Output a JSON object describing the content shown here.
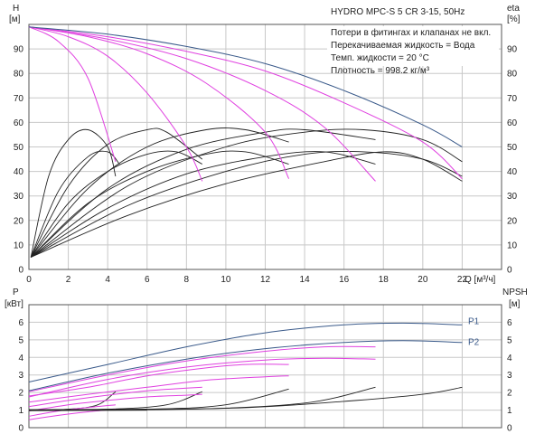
{
  "title": "HYDRO MPC-S 5 CR 3-15, 50Hz",
  "info_lines": [
    "Потери в фитингах и клапанах не вкл.",
    "Перекачиваемая жидкость = Вода",
    "Темп. жидкости = 20 °C",
    "Плотность = 998.2 кг/м³"
  ],
  "colors": {
    "head": "#e040e0",
    "pump_dark": "#3a5a8a",
    "eta": "#222222",
    "power": "#e040e0",
    "npsh": "#222222"
  },
  "chart_data": [
    {
      "type": "line",
      "name": "head-efficiency",
      "xlabel": "Q [м³/ч]",
      "xlim": [
        0,
        24
      ],
      "x_ticks": [
        0,
        2,
        4,
        6,
        8,
        10,
        12,
        14,
        16,
        18,
        20,
        22
      ],
      "left_axis": {
        "label_top": "H",
        "label_unit": "[м]",
        "ylim": [
          0,
          100
        ],
        "ticks": [
          0,
          10,
          20,
          30,
          40,
          50,
          60,
          70,
          80,
          90
        ]
      },
      "right_axis": {
        "label_top": "eta",
        "label_unit": "[%]",
        "ylim": [
          0,
          100
        ],
        "ticks": [
          0,
          10,
          20,
          30,
          40,
          50,
          60,
          70,
          80,
          90
        ]
      },
      "grid": true,
      "head_curves": [
        {
          "points": [
            [
              0,
              99
            ],
            [
              1.5,
              93
            ],
            [
              3,
              78
            ],
            [
              4.4,
              44
            ]
          ]
        },
        {
          "points": [
            [
              0,
              99
            ],
            [
              2,
              95
            ],
            [
              4,
              87
            ],
            [
              6,
              72
            ],
            [
              8,
              50
            ],
            [
              8.8,
              36
            ]
          ]
        },
        {
          "points": [
            [
              0,
              99
            ],
            [
              3,
              95
            ],
            [
              6,
              88
            ],
            [
              9,
              76
            ],
            [
              12,
              56
            ],
            [
              13.2,
              37
            ]
          ]
        },
        {
          "points": [
            [
              0,
              99
            ],
            [
              4,
              94
            ],
            [
              8,
              86
            ],
            [
              12,
              73
            ],
            [
              15,
              58
            ],
            [
              17.6,
              36
            ]
          ]
        },
        {
          "points": [
            [
              0,
              99
            ],
            [
              4,
              95
            ],
            [
              8,
              89
            ],
            [
              12,
              81
            ],
            [
              16,
              68
            ],
            [
              20,
              52
            ],
            [
              22,
              37
            ]
          ]
        },
        {
          "points": [
            [
              0,
              99
            ],
            [
              4,
              96
            ],
            [
              8,
              91
            ],
            [
              12,
              84
            ],
            [
              16,
              73
            ],
            [
              20,
              59
            ],
            [
              22,
              50
            ]
          ]
        }
      ],
      "eta_curves": [
        {
          "points": [
            [
              0.1,
              5
            ],
            [
              1,
              38
            ],
            [
              2,
              53
            ],
            [
              3,
              57
            ],
            [
              4,
              50
            ],
            [
              4.4,
              38
            ]
          ]
        },
        {
          "points": [
            [
              0.1,
              5
            ],
            [
              1.5,
              32
            ],
            [
              3,
              46
            ],
            [
              4,
              48
            ],
            [
              4.6,
              43
            ]
          ]
        },
        {
          "points": [
            [
              0.1,
              5
            ],
            [
              2,
              34
            ],
            [
              4,
              51
            ],
            [
              6,
              57
            ],
            [
              7,
              56
            ],
            [
              8.8,
              45
            ]
          ]
        },
        {
          "points": [
            [
              0.1,
              5
            ],
            [
              2,
              27
            ],
            [
              4,
              40
            ],
            [
              6,
              47
            ],
            [
              7.5,
              48
            ],
            [
              8.8,
              43
            ]
          ]
        },
        {
          "points": [
            [
              0.1,
              5
            ],
            [
              3,
              33
            ],
            [
              6,
              50
            ],
            [
              9,
              57
            ],
            [
              11,
              57
            ],
            [
              13.2,
              52
            ]
          ]
        },
        {
          "points": [
            [
              0.1,
              5
            ],
            [
              3,
              27
            ],
            [
              6,
              40
            ],
            [
              9,
              47
            ],
            [
              11,
              48
            ],
            [
              13.2,
              43
            ]
          ]
        },
        {
          "points": [
            [
              0.1,
              5
            ],
            [
              4,
              33
            ],
            [
              8,
              49
            ],
            [
              12,
              56
            ],
            [
              14,
              57
            ],
            [
              17.6,
              53
            ]
          ]
        },
        {
          "points": [
            [
              0.1,
              5
            ],
            [
              4,
              25
            ],
            [
              8,
              39
            ],
            [
              12,
              46
            ],
            [
              15,
              48
            ],
            [
              17.6,
              43
            ]
          ]
        },
        {
          "points": [
            [
              0.1,
              5
            ],
            [
              5,
              34
            ],
            [
              10,
              50
            ],
            [
              14,
              56
            ],
            [
              17,
              57
            ],
            [
              20,
              53
            ],
            [
              22,
              44
            ]
          ]
        },
        {
          "points": [
            [
              0.1,
              5
            ],
            [
              5,
              26
            ],
            [
              10,
              40
            ],
            [
              14,
              47
            ],
            [
              17,
              48
            ],
            [
              20,
              45
            ],
            [
              22,
              38
            ]
          ]
        },
        {
          "points": [
            [
              0.1,
              5
            ],
            [
              5,
              22
            ],
            [
              10,
              35
            ],
            [
              15,
              44
            ],
            [
              18,
              48
            ],
            [
              20,
              45
            ],
            [
              22,
              36
            ]
          ]
        }
      ]
    },
    {
      "type": "line",
      "name": "power-npsh",
      "xlim": [
        0,
        24
      ],
      "left_axis": {
        "label_top": "P",
        "label_unit": "[кВт]",
        "ylim": [
          0,
          7
        ],
        "ticks": [
          0,
          1,
          2,
          3,
          4,
          5,
          6
        ]
      },
      "right_axis": {
        "label_top": "NPSH",
        "label_unit": "[м]",
        "ylim": [
          0,
          7
        ],
        "ticks": [
          0,
          1,
          2,
          3,
          4,
          5,
          6
        ]
      },
      "grid": true,
      "series_labels": [
        {
          "text": "P1",
          "x": 22.3,
          "y": 5.9
        },
        {
          "text": "P2",
          "x": 22.3,
          "y": 4.7
        }
      ],
      "p1_curve": {
        "points": [
          [
            0,
            2.6
          ],
          [
            4,
            3.6
          ],
          [
            8,
            4.6
          ],
          [
            12,
            5.4
          ],
          [
            16,
            5.85
          ],
          [
            19,
            5.95
          ],
          [
            22,
            5.85
          ]
        ]
      },
      "p2_curve": {
        "points": [
          [
            0,
            2.1
          ],
          [
            4,
            3.1
          ],
          [
            8,
            3.9
          ],
          [
            12,
            4.5
          ],
          [
            16,
            4.85
          ],
          [
            19,
            4.95
          ],
          [
            22,
            4.85
          ]
        ]
      },
      "power_curves": [
        {
          "points": [
            [
              0,
              2.05
            ],
            [
              4,
              3.0
            ],
            [
              8,
              3.8
            ],
            [
              12,
              4.35
            ],
            [
              15,
              4.6
            ],
            [
              17.6,
              4.6
            ]
          ]
        },
        {
          "points": [
            [
              0,
              1.8
            ],
            [
              3,
              2.3
            ],
            [
              6,
              2.95
            ],
            [
              9,
              3.4
            ],
            [
              11,
              3.6
            ],
            [
              13.2,
              3.6
            ]
          ]
        },
        {
          "points": [
            [
              0,
              1.45
            ],
            [
              3,
              1.9
            ],
            [
              6,
              2.3
            ],
            [
              9,
              2.7
            ],
            [
              12,
              2.9
            ],
            [
              13.2,
              2.95
            ]
          ]
        },
        {
          "points": [
            [
              0,
              1.2
            ],
            [
              2,
              1.55
            ],
            [
              4,
              1.85
            ],
            [
              6,
              2.1
            ],
            [
              8,
              2.25
            ],
            [
              8.8,
              2.3
            ]
          ]
        },
        {
          "points": [
            [
              0,
              0.95
            ],
            [
              2,
              1.3
            ],
            [
              4,
              1.55
            ],
            [
              6,
              1.75
            ],
            [
              8,
              1.85
            ],
            [
              8.8,
              1.9
            ]
          ]
        },
        {
          "points": [
            [
              0,
              0.65
            ],
            [
              1.5,
              0.95
            ],
            [
              3,
              1.15
            ],
            [
              4.4,
              1.3
            ]
          ]
        },
        {
          "points": [
            [
              0,
              0.45
            ],
            [
              1.5,
              0.7
            ],
            [
              3,
              0.9
            ],
            [
              4.4,
              1.05
            ]
          ]
        },
        {
          "points": [
            [
              0,
              1.75
            ],
            [
              4,
              2.75
            ],
            [
              8,
              3.45
            ],
            [
              12,
              3.85
            ],
            [
              15,
              3.95
            ],
            [
              17.6,
              3.9
            ]
          ]
        }
      ],
      "npsh_curves": [
        {
          "points": [
            [
              0,
              1.0
            ],
            [
              2,
              1.05
            ],
            [
              3.5,
              1.3
            ],
            [
              4.4,
              2.05
            ]
          ]
        },
        {
          "points": [
            [
              0,
              1.0
            ],
            [
              4,
              1.05
            ],
            [
              7,
              1.3
            ],
            [
              8.8,
              2.05
            ]
          ]
        },
        {
          "points": [
            [
              0,
              1.0
            ],
            [
              6,
              1.05
            ],
            [
              10,
              1.3
            ],
            [
              13.2,
              2.2
            ]
          ]
        },
        {
          "points": [
            [
              0,
              1.0
            ],
            [
              8,
              1.05
            ],
            [
              14,
              1.4
            ],
            [
              17.6,
              2.3
            ]
          ]
        },
        {
          "points": [
            [
              0,
              1.0
            ],
            [
              10,
              1.1
            ],
            [
              16,
              1.5
            ],
            [
              20,
              1.9
            ],
            [
              22,
              2.3
            ]
          ]
        }
      ]
    }
  ]
}
